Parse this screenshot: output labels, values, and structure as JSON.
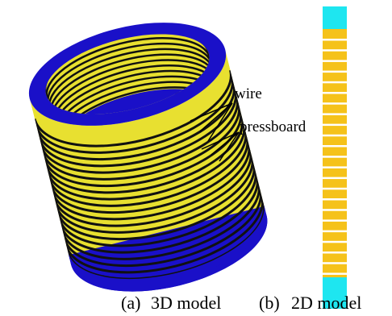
{
  "annotations": {
    "wire": "wire",
    "pressboard": "pressboard"
  },
  "captions": [
    {
      "label": "(a)",
      "text": "3D model"
    },
    {
      "label": "(b)",
      "text": "2D model"
    }
  ]
}
